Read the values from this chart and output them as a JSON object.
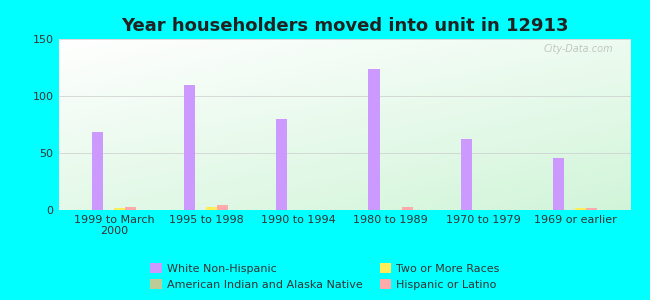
{
  "title": "Year householders moved into unit in 12913",
  "categories": [
    "1999 to March\n2000",
    "1995 to 1998",
    "1990 to 1994",
    "1980 to 1989",
    "1970 to 1979",
    "1969 or earlier"
  ],
  "series": {
    "White Non-Hispanic": [
      68,
      110,
      80,
      124,
      62,
      46
    ],
    "American Indian and Alaska Native": [
      0,
      0,
      0,
      0,
      0,
      0
    ],
    "Two or More Races": [
      2,
      3,
      0,
      0,
      0,
      2
    ],
    "Hispanic or Latino": [
      3,
      4,
      0,
      3,
      0,
      2
    ]
  },
  "colors": {
    "White Non-Hispanic": "#cc99ff",
    "American Indian and Alaska Native": "#bbcc99",
    "Two or More Races": "#ffee55",
    "Hispanic or Latino": "#ffaaaa"
  },
  "bar_width": 0.12,
  "background_outer": "#00FFFF",
  "ylim": [
    0,
    150
  ],
  "yticks": [
    0,
    50,
    100,
    150
  ],
  "title_fontsize": 13,
  "tick_fontsize": 8,
  "legend_fontsize": 8,
  "watermark": "City-Data.com",
  "legend_order": [
    "White Non-Hispanic",
    "American Indian and Alaska Native",
    "Two or More Races",
    "Hispanic or Latino"
  ]
}
